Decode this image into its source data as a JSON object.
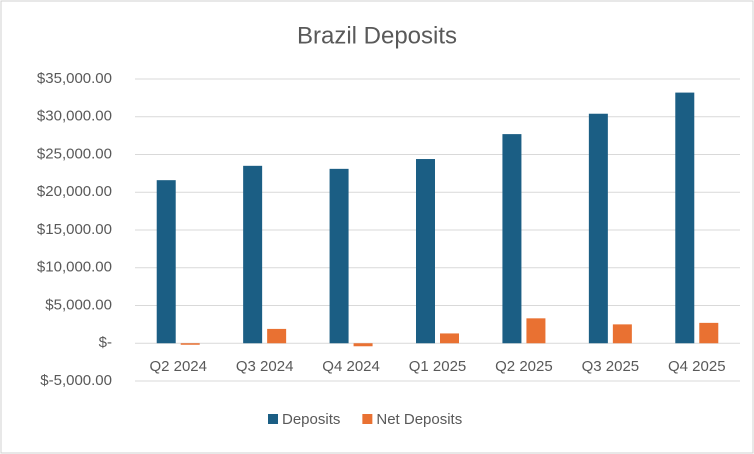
{
  "chart_data": {
    "type": "bar",
    "title": "Brazil Deposits",
    "categories": [
      "Q2 2024",
      "Q3 2024",
      "Q4 2024",
      "Q1 2025",
      "Q2 2025",
      "Q3 2025",
      "Q4 2025"
    ],
    "series": [
      {
        "name": "Deposits",
        "color": "#1b5e84",
        "values": [
          21600,
          23500,
          23100,
          24400,
          27700,
          30400,
          33200
        ]
      },
      {
        "name": "Net Deposits",
        "color": "#e97132",
        "values": [
          -200,
          1900,
          -400,
          1300,
          3300,
          2500,
          2700
        ]
      }
    ],
    "ylim": [
      -5000,
      35000
    ],
    "yticks": [
      {
        "value": -5000,
        "label": "$-5,000.00"
      },
      {
        "value": 0,
        "label": "$-"
      },
      {
        "value": 5000,
        "label": "$5,000.00"
      },
      {
        "value": 10000,
        "label": "$10,000.00"
      },
      {
        "value": 15000,
        "label": "$15,000.00"
      },
      {
        "value": 20000,
        "label": "$20,000.00"
      },
      {
        "value": 25000,
        "label": "$25,000.00"
      },
      {
        "value": 30000,
        "label": "$30,000.00"
      },
      {
        "value": 35000,
        "label": "$35,000.00"
      }
    ],
    "grid": true,
    "legend": "bottom"
  }
}
